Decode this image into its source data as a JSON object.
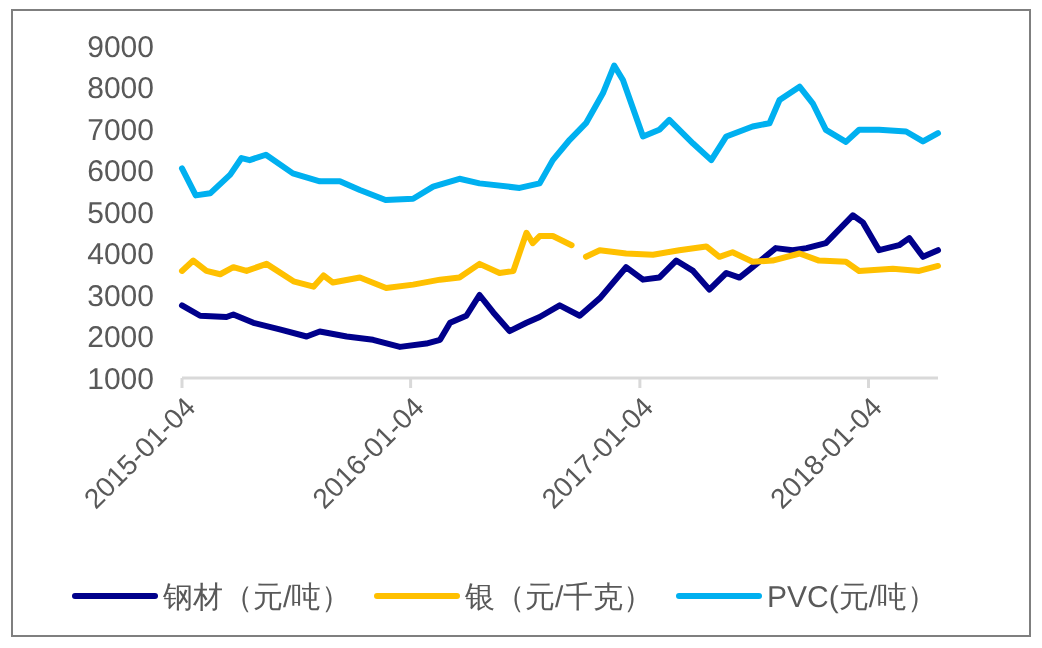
{
  "chart_data": {
    "type": "line",
    "legend": "bottom",
    "grid": false,
    "line_style": "solid",
    "marker": "none",
    "ylim": [
      1000,
      9000
    ],
    "yticks": [
      1000,
      2000,
      3000,
      4000,
      5000,
      6000,
      7000,
      8000,
      9000
    ],
    "xlim": [
      "2015-01-04",
      "2018-04-25"
    ],
    "xticks": [
      "2015-01-04",
      "2016-01-04",
      "2017-01-04",
      "2018-01-04"
    ],
    "series": [
      {
        "name": "钢材（元/吨）",
        "color": "#00008b",
        "x": [
          "2015-01-04",
          "2015-02-02",
          "2015-03-16",
          "2015-03-27",
          "2015-04-28",
          "2015-06-09",
          "2015-07-22",
          "2015-08-12",
          "2015-09-24",
          "2015-11-05",
          "2015-12-18",
          "2016-01-29",
          "2016-02-20",
          "2016-03-07",
          "2016-04-02",
          "2016-04-23",
          "2016-05-15",
          "2016-06-10",
          "2016-07-07",
          "2016-07-28",
          "2016-08-29",
          "2016-09-30",
          "2016-11-01",
          "2016-12-13",
          "2017-01-09",
          "2017-02-04",
          "2017-03-03",
          "2017-03-30",
          "2017-04-25",
          "2017-05-22",
          "2017-06-12",
          "2017-07-03",
          "2017-08-09",
          "2017-09-05",
          "2017-09-27",
          "2017-10-28",
          "2017-12-10",
          "2017-12-26",
          "2018-01-21",
          "2018-02-22",
          "2018-03-10",
          "2018-04-01",
          "2018-04-25"
        ],
        "values": [
          2750,
          2500,
          2470,
          2530,
          2330,
          2170,
          2000,
          2120,
          2000,
          1920,
          1750,
          1830,
          1920,
          2330,
          2500,
          3000,
          2580,
          2130,
          2330,
          2470,
          2750,
          2500,
          2920,
          3670,
          3370,
          3420,
          3830,
          3580,
          3130,
          3530,
          3420,
          3670,
          4130,
          4080,
          4130,
          4250,
          4920,
          4750,
          4080,
          4200,
          4370,
          3920,
          4080
        ]
      },
      {
        "name": "银（元/千克）",
        "color": "#ffc000",
        "x": [
          "2015-01-04",
          "2015-01-22",
          "2015-02-12",
          "2015-03-06",
          "2015-03-27",
          "2015-04-17",
          "2015-05-19",
          "2015-07-01",
          "2015-08-02",
          "2015-08-18",
          "2015-09-02",
          "2015-10-15",
          "2015-11-26",
          "2016-01-08",
          "2016-02-20",
          "2016-03-22",
          "2016-04-23",
          "2016-05-25",
          "2016-06-16",
          "2016-07-07",
          "2016-07-17",
          "2016-07-28",
          "2016-08-18",
          "2016-09-17",
          "2016-09-27",
          "2016-10-10",
          "2016-11-01",
          "2016-12-13",
          "2017-01-25",
          "2017-03-08",
          "2017-04-20",
          "2017-05-11",
          "2017-06-01",
          "2017-07-03",
          "2017-08-04",
          "2017-09-16",
          "2017-10-17",
          "2017-11-29",
          "2017-12-20",
          "2018-02-12",
          "2018-03-26",
          "2018-04-25"
        ],
        "values": [
          3580,
          3830,
          3580,
          3500,
          3670,
          3580,
          3750,
          3330,
          3200,
          3470,
          3300,
          3420,
          3170,
          3250,
          3370,
          3420,
          3750,
          3530,
          3580,
          4500,
          4250,
          4420,
          4420,
          4200,
          null,
          3920,
          4080,
          4000,
          3970,
          4080,
          4170,
          3920,
          4030,
          3800,
          3830,
          4000,
          3830,
          3800,
          3580,
          3630,
          3580,
          3700
        ]
      },
      {
        "name": "PVC(元/吨）",
        "color": "#00b0f0",
        "x": [
          "2015-01-04",
          "2015-01-26",
          "2015-02-18",
          "2015-03-22",
          "2015-04-09",
          "2015-04-22",
          "2015-05-18",
          "2015-06-30",
          "2015-08-12",
          "2015-09-13",
          "2015-10-15",
          "2015-11-25",
          "2016-01-08",
          "2016-02-09",
          "2016-03-22",
          "2016-04-23",
          "2016-06-26",
          "2016-07-28",
          "2016-08-18",
          "2016-09-14",
          "2016-10-10",
          "2016-11-06",
          "2016-11-24",
          "2016-12-08",
          "2017-01-09",
          "2017-02-04",
          "2017-02-20",
          "2017-03-30",
          "2017-04-28",
          "2017-05-22",
          "2017-07-03",
          "2017-07-30",
          "2017-08-15",
          "2017-09-16",
          "2017-10-07",
          "2017-10-28",
          "2017-11-29",
          "2017-12-20",
          "2018-01-21",
          "2018-03-05",
          "2018-04-01",
          "2018-04-25"
        ],
        "values": [
          6050,
          5400,
          5450,
          5900,
          6300,
          6250,
          6380,
          5930,
          5740,
          5740,
          5530,
          5290,
          5320,
          5610,
          5800,
          5690,
          5580,
          5690,
          6250,
          6740,
          7140,
          7860,
          8530,
          8180,
          6820,
          6980,
          7220,
          6650,
          6250,
          6820,
          7060,
          7140,
          7700,
          8020,
          7620,
          6980,
          6690,
          6980,
          6980,
          6940,
          6700,
          6900
        ]
      }
    ]
  }
}
